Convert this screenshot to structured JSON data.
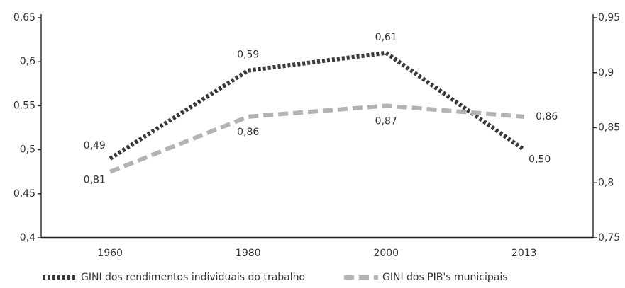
{
  "chart_data": {
    "type": "line",
    "categories": [
      "1960",
      "1980",
      "2000",
      "2013"
    ],
    "series": [
      {
        "name": "GINI dos rendimentos individuais do trabalho",
        "color": "#3a3a3a",
        "axis": "y",
        "values": [
          0.49,
          0.59,
          0.61,
          0.5
        ],
        "value_labels": [
          "0,49",
          "0,59",
          "0,61",
          "0,50"
        ]
      },
      {
        "name": "GINI dos PIB's municipais",
        "color": "#b3b3b3",
        "axis": "y2",
        "values": [
          0.81,
          0.86,
          0.87,
          0.86
        ],
        "value_labels": [
          "0,81",
          "0,86",
          "0,87",
          "0,86"
        ]
      }
    ],
    "ylim": [
      0.4,
      0.65
    ],
    "yticks": [
      {
        "value": 0.4,
        "label": "0,4"
      },
      {
        "value": 0.45,
        "label": "0,45"
      },
      {
        "value": 0.5,
        "label": "0,5"
      },
      {
        "value": 0.55,
        "label": "0,55"
      },
      {
        "value": 0.6,
        "label": "0,6"
      },
      {
        "value": 0.65,
        "label": "0,65"
      }
    ],
    "y2lim": [
      0.75,
      0.95
    ],
    "y2ticks": [
      {
        "value": 0.75,
        "label": "0,75"
      },
      {
        "value": 0.8,
        "label": "0,8"
      },
      {
        "value": 0.85,
        "label": "0,85"
      },
      {
        "value": 0.9,
        "label": "0,9"
      },
      {
        "value": 0.95,
        "label": "0,95"
      }
    ],
    "grid": false
  }
}
